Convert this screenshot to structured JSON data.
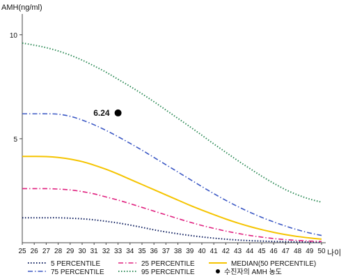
{
  "chart_data": {
    "type": "line",
    "ylabel": "AMH(ng/ml)",
    "xlabel": "나이",
    "xlim": [
      25,
      50
    ],
    "ylim": [
      0,
      11
    ],
    "x": [
      25,
      26,
      27,
      28,
      29,
      30,
      31,
      32,
      33,
      34,
      35,
      36,
      37,
      38,
      39,
      40,
      41,
      42,
      43,
      44,
      45,
      46,
      47,
      48,
      49,
      50
    ],
    "x_ticks": [
      "25",
      "26",
      "27",
      "28",
      "29",
      "30",
      "31",
      "32",
      "33",
      "34",
      "35",
      "36",
      "37",
      "38",
      "39",
      "40",
      "41",
      "42",
      "43",
      "44",
      "45",
      "46",
      "47",
      "48",
      "49",
      "50"
    ],
    "y_ticks": [
      {
        "value": 5,
        "label": "5"
      },
      {
        "value": 10,
        "label": "10"
      }
    ],
    "series": [
      {
        "name": "5 PERCENTILE",
        "color": "#0a1a5c",
        "style": "dotted",
        "values": [
          1.2,
          1.2,
          1.2,
          1.2,
          1.18,
          1.15,
          1.1,
          1.03,
          0.95,
          0.85,
          0.74,
          0.62,
          0.52,
          0.43,
          0.35,
          0.28,
          0.22,
          0.17,
          0.13,
          0.1,
          0.08,
          0.06,
          0.05,
          0.04,
          0.03,
          0.02
        ]
      },
      {
        "name": "25 PERCENTILE",
        "color": "#e0207f",
        "style": "dashdot",
        "values": [
          2.6,
          2.6,
          2.6,
          2.58,
          2.54,
          2.46,
          2.35,
          2.2,
          2.05,
          1.88,
          1.7,
          1.52,
          1.34,
          1.16,
          0.99,
          0.83,
          0.69,
          0.56,
          0.45,
          0.35,
          0.27,
          0.2,
          0.15,
          0.11,
          0.08,
          0.06
        ]
      },
      {
        "name": "MEDIAN(50 PERCENTILE)",
        "color": "#f5c400",
        "style": "solid",
        "values": [
          4.15,
          4.15,
          4.14,
          4.1,
          4.02,
          3.9,
          3.73,
          3.53,
          3.3,
          3.05,
          2.8,
          2.55,
          2.3,
          2.05,
          1.8,
          1.57,
          1.35,
          1.14,
          0.95,
          0.78,
          0.63,
          0.5,
          0.39,
          0.3,
          0.23,
          0.17
        ]
      },
      {
        "name": "75 PERCENTILE",
        "color": "#3a57c4",
        "style": "dashdot",
        "values": [
          6.2,
          6.2,
          6.2,
          6.18,
          6.08,
          5.9,
          5.67,
          5.4,
          5.1,
          4.78,
          4.45,
          4.1,
          3.75,
          3.4,
          3.05,
          2.7,
          2.36,
          2.04,
          1.74,
          1.47,
          1.22,
          1.0,
          0.8,
          0.62,
          0.47,
          0.35
        ]
      },
      {
        "name": "95 PERCENTILE",
        "color": "#2e8b57",
        "style": "dotted",
        "values": [
          9.6,
          9.5,
          9.38,
          9.22,
          9.02,
          8.78,
          8.5,
          8.2,
          7.86,
          7.52,
          7.16,
          6.78,
          6.38,
          5.98,
          5.58,
          5.17,
          4.75,
          4.35,
          3.95,
          3.57,
          3.2,
          2.86,
          2.55,
          2.3,
          2.1,
          1.95
        ]
      }
    ],
    "marker": {
      "name": "수진자의 AMH 농도",
      "x": 33,
      "y": 6.24,
      "label": "6.24",
      "color": "#000000"
    }
  }
}
